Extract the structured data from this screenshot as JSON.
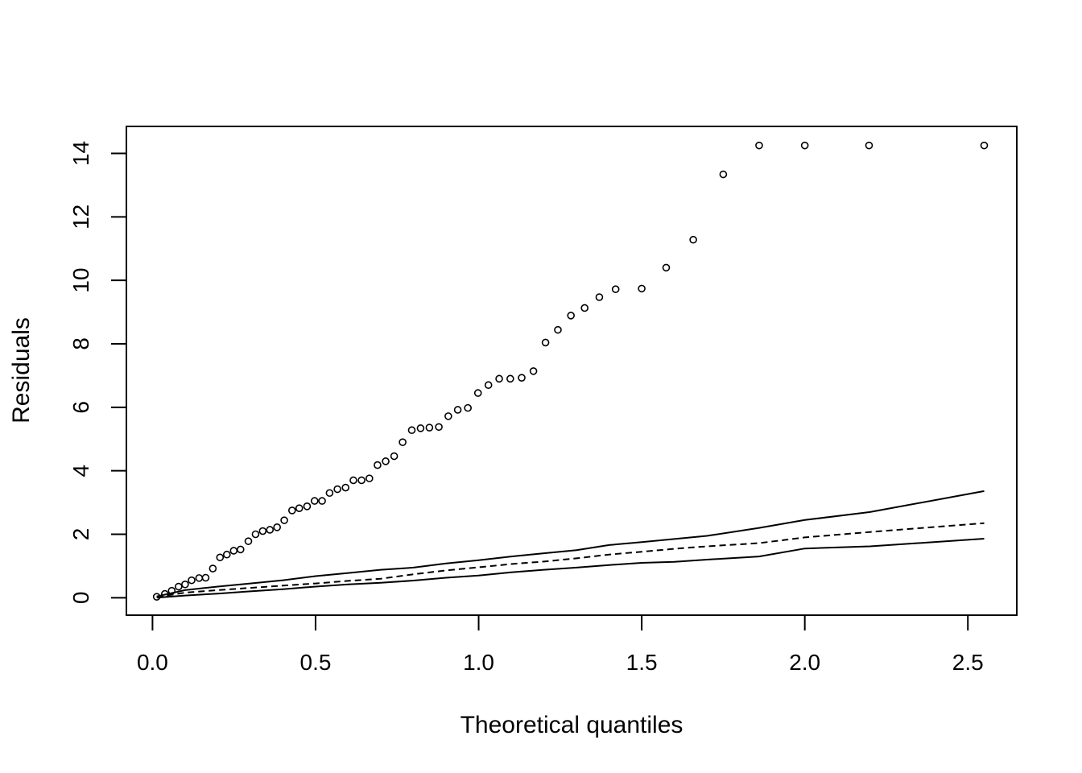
{
  "chart_data": {
    "type": "scatter",
    "title": "",
    "xlabel": "Theoretical quantiles",
    "ylabel": "Residuals",
    "xlim": [
      -0.08,
      2.65
    ],
    "ylim": [
      -0.55,
      14.85
    ],
    "grid": false,
    "legend": "none",
    "x_ticks": [
      0.0,
      0.5,
      1.0,
      1.5,
      2.0,
      2.5
    ],
    "x_tick_labels": [
      "0.0",
      "0.5",
      "1.0",
      "1.5",
      "2.0",
      "2.5"
    ],
    "y_ticks": [
      0,
      2,
      4,
      6,
      8,
      10,
      12,
      14
    ],
    "y_tick_labels": [
      "0",
      "2",
      "4",
      "6",
      "8",
      "10",
      "12",
      "14"
    ],
    "points": {
      "x": [
        0.013,
        0.038,
        0.059,
        0.08,
        0.1,
        0.12,
        0.143,
        0.163,
        0.185,
        0.207,
        0.228,
        0.249,
        0.27,
        0.294,
        0.316,
        0.338,
        0.36,
        0.382,
        0.404,
        0.428,
        0.45,
        0.474,
        0.497,
        0.52,
        0.543,
        0.567,
        0.592,
        0.616,
        0.641,
        0.665,
        0.69,
        0.715,
        0.741,
        0.767,
        0.795,
        0.822,
        0.849,
        0.878,
        0.907,
        0.936,
        0.967,
        0.998,
        1.03,
        1.063,
        1.097,
        1.132,
        1.168,
        1.205,
        1.243,
        1.283,
        1.325,
        1.37,
        1.42,
        1.5,
        1.575,
        1.658,
        1.75,
        1.86,
        2.0,
        2.197,
        2.55
      ],
      "y": [
        0.03,
        0.12,
        0.22,
        0.35,
        0.42,
        0.55,
        0.62,
        0.63,
        0.92,
        1.27,
        1.36,
        1.48,
        1.52,
        1.78,
        2.0,
        2.1,
        2.14,
        2.22,
        2.44,
        2.75,
        2.82,
        2.88,
        3.05,
        3.05,
        3.3,
        3.42,
        3.47,
        3.7,
        3.7,
        3.76,
        4.18,
        4.3,
        4.46,
        4.9,
        5.28,
        5.34,
        5.36,
        5.38,
        5.72,
        5.92,
        5.98,
        6.45,
        6.7,
        6.9,
        6.9,
        6.93,
        7.14,
        8.04,
        8.44,
        8.89,
        9.13,
        9.47,
        9.72,
        9.74,
        10.4,
        11.28,
        13.34,
        14.25,
        14.25,
        14.25,
        14.25
      ],
      "note": ""
    },
    "series": [
      {
        "style": "dashed",
        "x": [
          0.013,
          0.1,
          0.2,
          0.3,
          0.4,
          0.5,
          0.6,
          0.7,
          0.8,
          0.9,
          1.0,
          1.1,
          1.2,
          1.3,
          1.4,
          1.5,
          1.6,
          1.7,
          1.86,
          2.0,
          2.2,
          2.55
        ],
        "y": [
          0.02,
          0.16,
          0.24,
          0.31,
          0.38,
          0.45,
          0.53,
          0.6,
          0.74,
          0.86,
          0.96,
          1.06,
          1.14,
          1.24,
          1.36,
          1.45,
          1.54,
          1.62,
          1.72,
          1.9,
          2.07,
          2.35
        ]
      },
      {
        "style": "solid",
        "x": [
          0.013,
          0.1,
          0.2,
          0.3,
          0.4,
          0.5,
          0.6,
          0.7,
          0.8,
          0.9,
          1.0,
          1.1,
          1.2,
          1.3,
          1.4,
          1.5,
          1.6,
          1.7,
          1.86,
          2.0,
          2.2,
          2.55
        ],
        "y": [
          0.04,
          0.24,
          0.35,
          0.45,
          0.55,
          0.68,
          0.78,
          0.88,
          0.95,
          1.08,
          1.18,
          1.3,
          1.4,
          1.5,
          1.66,
          1.75,
          1.85,
          1.95,
          2.2,
          2.45,
          2.7,
          3.36
        ]
      },
      {
        "style": "solid",
        "x": [
          0.013,
          0.1,
          0.2,
          0.3,
          0.4,
          0.5,
          0.6,
          0.7,
          0.8,
          0.9,
          1.0,
          1.1,
          1.2,
          1.3,
          1.4,
          1.5,
          1.6,
          1.7,
          1.86,
          2.0,
          2.2,
          2.55
        ],
        "y": [
          0.0,
          0.07,
          0.13,
          0.2,
          0.27,
          0.35,
          0.42,
          0.47,
          0.54,
          0.63,
          0.7,
          0.8,
          0.88,
          0.95,
          1.03,
          1.1,
          1.13,
          1.2,
          1.3,
          1.55,
          1.62,
          1.86
        ]
      }
    ]
  }
}
